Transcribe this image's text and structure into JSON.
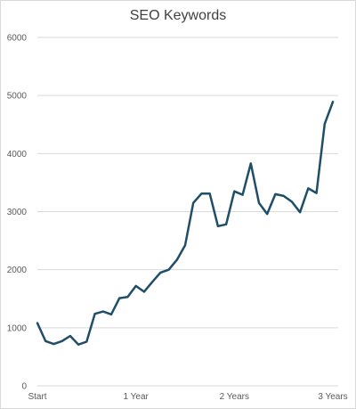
{
  "chart_data": {
    "type": "line",
    "title": "SEO Keywords",
    "xlabel": "",
    "ylabel": "",
    "ylim": [
      0,
      6000
    ],
    "yticks": [
      0,
      1000,
      2000,
      3000,
      4000,
      5000,
      6000
    ],
    "grid": "horizontal",
    "legend": "none",
    "x_tick_labels": [
      {
        "index": 0,
        "label": "Start"
      },
      {
        "index": 12,
        "label": "1 Year"
      },
      {
        "index": 24,
        "label": "2 Years"
      },
      {
        "index": 36,
        "label": "3 Years"
      }
    ],
    "series": [
      {
        "color": "#1f4e68",
        "values": [
          1080,
          770,
          720,
          770,
          860,
          710,
          760,
          1240,
          1280,
          1230,
          1510,
          1530,
          1720,
          1620,
          1790,
          1950,
          2000,
          2170,
          2420,
          3150,
          3310,
          3310,
          2750,
          2780,
          3350,
          3290,
          3830,
          3150,
          2960,
          3300,
          3270,
          3170,
          2990,
          3400,
          3320,
          4510,
          4890
        ]
      }
    ]
  }
}
